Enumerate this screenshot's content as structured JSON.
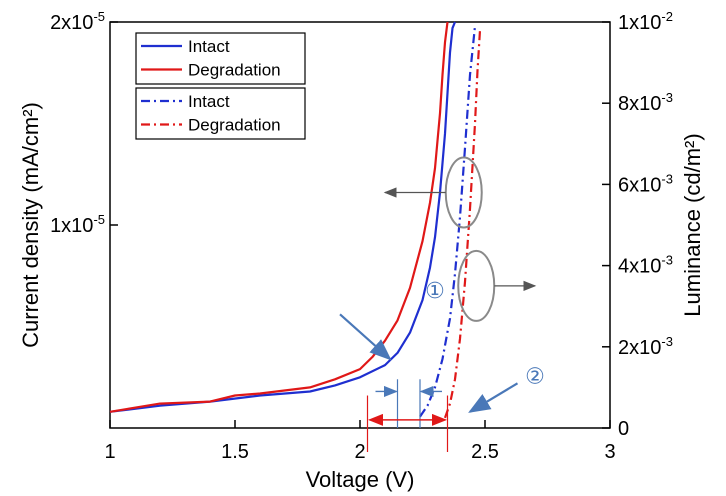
{
  "chart_data": {
    "type": "line",
    "xlabel": "Voltage (V)",
    "ylabel_left": "Current density (mA/cm²)",
    "ylabel_right": "Luminance (cd/m²)",
    "xlim": [
      1,
      3
    ],
    "ylim_left": [
      0,
      2e-05
    ],
    "ylim_right": [
      0,
      0.01
    ],
    "x_ticks": [
      "1",
      "1.5",
      "2",
      "2.5",
      "3"
    ],
    "y_left_ticks": [
      {
        "value": 1e-05,
        "label": "1x10",
        "exp": "-5"
      },
      {
        "value": 2e-05,
        "label": "2x10",
        "exp": "-5"
      }
    ],
    "y_right_ticks": [
      {
        "value": 0,
        "label": "0",
        "exp": ""
      },
      {
        "value": 0.002,
        "label": "2x10",
        "exp": "-3"
      },
      {
        "value": 0.004,
        "label": "4x10",
        "exp": "-3"
      },
      {
        "value": 0.006,
        "label": "6x10",
        "exp": "-3"
      },
      {
        "value": 0.008,
        "label": "8x10",
        "exp": "-3"
      },
      {
        "value": 0.01,
        "label": "1x10",
        "exp": "-2"
      }
    ],
    "legend": [
      {
        "name": "Intact",
        "color": "#1f2fd0",
        "style": "solid"
      },
      {
        "name": "Degradation",
        "color": "#e01818",
        "style": "solid"
      },
      {
        "name": "Intact",
        "color": "#1f2fd0",
        "style": "dashdot"
      },
      {
        "name": "Degradation",
        "color": "#e01818",
        "style": "dashdot"
      }
    ],
    "legend_position": "top-left",
    "series": [
      {
        "name": "Intact",
        "axis": "left",
        "style": "solid",
        "color": "#1f2fd0",
        "x": [
          1.0,
          1.2,
          1.4,
          1.6,
          1.8,
          1.9,
          2.0,
          2.1,
          2.15,
          2.2,
          2.25,
          2.28,
          2.3,
          2.32,
          2.34,
          2.35,
          2.36,
          2.37,
          2.38
        ],
        "y": [
          8e-07,
          1.1e-06,
          1.3e-06,
          1.6e-06,
          1.8e-06,
          2.1e-06,
          2.5e-06,
          3.1e-06,
          3.7e-06,
          4.7e-06,
          6.3e-06,
          7.9e-06,
          9.4e-06,
          1.16e-05,
          1.45e-05,
          1.65e-05,
          1.85e-05,
          1.97e-05,
          2e-05
        ]
      },
      {
        "name": "Degradation",
        "axis": "left",
        "style": "solid",
        "color": "#e01818",
        "x": [
          1.0,
          1.2,
          1.4,
          1.5,
          1.6,
          1.8,
          1.9,
          2.0,
          2.05,
          2.1,
          2.15,
          2.2,
          2.25,
          2.28,
          2.3,
          2.32,
          2.33,
          2.34,
          2.35
        ],
        "y": [
          8e-07,
          1.2e-06,
          1.3e-06,
          1.6e-06,
          1.7e-06,
          2e-06,
          2.4e-06,
          2.9e-06,
          3.5e-06,
          4.3e-06,
          5.3e-06,
          6.9e-06,
          9.2e-06,
          1.11e-05,
          1.28e-05,
          1.55e-05,
          1.74e-05,
          1.9e-05,
          2e-05
        ]
      },
      {
        "name": "Intact",
        "axis": "right",
        "style": "dashdot",
        "color": "#1f2fd0",
        "x": [
          2.24,
          2.27,
          2.3,
          2.33,
          2.36,
          2.38,
          2.4,
          2.42,
          2.44,
          2.46
        ],
        "y": [
          0.00028,
          0.00055,
          0.001,
          0.0017,
          0.0027,
          0.0038,
          0.0052,
          0.0069,
          0.0087,
          0.0099
        ]
      },
      {
        "name": "Degradation",
        "axis": "right",
        "style": "dashdot",
        "color": "#e01818",
        "x": [
          2.34,
          2.36,
          2.38,
          2.4,
          2.42,
          2.44,
          2.46,
          2.47,
          2.48
        ],
        "y": [
          0.00025,
          0.0006,
          0.0012,
          0.0022,
          0.0036,
          0.0054,
          0.0075,
          0.0088,
          0.0098
        ]
      }
    ],
    "annotations": [
      {
        "text": "①",
        "x": 2.3,
        "y_fraction": 0.32
      },
      {
        "text": "②",
        "x": 2.7,
        "y_fraction": 0.11
      }
    ]
  }
}
